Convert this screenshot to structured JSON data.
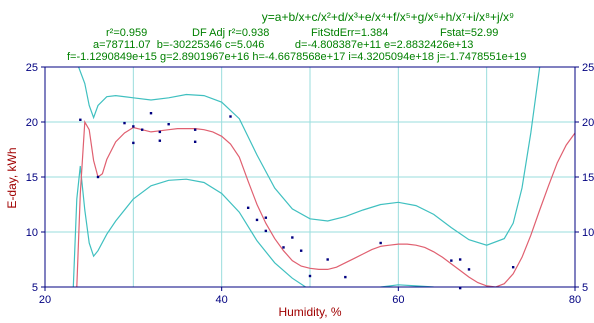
{
  "equation": "y=a+b/x+c/x²+d/x³+e/x⁴+f/x⁵+g/x⁶+h/x⁷+i/x⁸+j/x⁹",
  "stats": {
    "r2": "r²=0.959",
    "df_adj": "DF Adj r²=0.938",
    "fit_std_err": "FitStdErr=1.384",
    "fstat": "Fstat=52.99"
  },
  "coefficients": {
    "line1": "a=78711.07  b=-30225346 c=5.046          d=-4.808387e+11 e=2.8832426e+13",
    "line2": "f=-1.1290849e+15 g=2.8901967e+16 h=-4.6678568e+17 i=4.3205094e+18 j=-1.7478551e+19"
  },
  "colors": {
    "fit": "#e06070",
    "confidence": "#40c0c0",
    "prediction": "#40c0c0",
    "points": "#000080",
    "grid": "#99dddd",
    "axis": "#000080",
    "text": "#008000",
    "axis_label": "#a00000"
  },
  "chart_data": {
    "type": "scatter",
    "xlabel": "Humidity, %",
    "ylabel": "E-day, kWh",
    "xlim": [
      20,
      80
    ],
    "ylim": [
      5,
      25
    ],
    "xticks": [
      20,
      40,
      60,
      80
    ],
    "yticks": [
      5,
      10,
      15,
      20,
      25
    ],
    "grid": true,
    "points": [
      {
        "x": 24.0,
        "y": 20.2
      },
      {
        "x": 26.0,
        "y": 15.0
      },
      {
        "x": 29.0,
        "y": 19.9
      },
      {
        "x": 30.0,
        "y": 19.6
      },
      {
        "x": 30.0,
        "y": 18.1
      },
      {
        "x": 31.0,
        "y": 19.3
      },
      {
        "x": 32.0,
        "y": 20.8
      },
      {
        "x": 33.0,
        "y": 19.1
      },
      {
        "x": 33.0,
        "y": 18.3
      },
      {
        "x": 34.0,
        "y": 19.8
      },
      {
        "x": 37.0,
        "y": 19.3
      },
      {
        "x": 37.0,
        "y": 18.2
      },
      {
        "x": 41.0,
        "y": 20.5
      },
      {
        "x": 43.0,
        "y": 12.2
      },
      {
        "x": 44.0,
        "y": 11.1
      },
      {
        "x": 45.0,
        "y": 11.3
      },
      {
        "x": 45.0,
        "y": 10.1
      },
      {
        "x": 47.0,
        "y": 8.6
      },
      {
        "x": 48.0,
        "y": 9.5
      },
      {
        "x": 49.0,
        "y": 8.3
      },
      {
        "x": 50.0,
        "y": 6.0
      },
      {
        "x": 52.0,
        "y": 7.5
      },
      {
        "x": 54.0,
        "y": 5.9
      },
      {
        "x": 58.0,
        "y": 9.0
      },
      {
        "x": 66.0,
        "y": 7.4
      },
      {
        "x": 67.0,
        "y": 7.5
      },
      {
        "x": 68.0,
        "y": 6.6
      },
      {
        "x": 67.0,
        "y": 4.9
      },
      {
        "x": 73.0,
        "y": 6.8
      }
    ],
    "fit_curve": [
      [
        23.6,
        5.0
      ],
      [
        24.0,
        13.5
      ],
      [
        24.5,
        20.0
      ],
      [
        25.0,
        19.3
      ],
      [
        25.5,
        16.5
      ],
      [
        26.0,
        15.0
      ],
      [
        26.5,
        15.3
      ],
      [
        27.0,
        16.6
      ],
      [
        28.0,
        18.2
      ],
      [
        29.0,
        19.0
      ],
      [
        30.0,
        19.5
      ],
      [
        31.0,
        19.3
      ],
      [
        32.0,
        19.1
      ],
      [
        33.0,
        19.2
      ],
      [
        34.0,
        19.3
      ],
      [
        35.0,
        19.4
      ],
      [
        36.0,
        19.4
      ],
      [
        37.0,
        19.4
      ],
      [
        38.0,
        19.3
      ],
      [
        39.0,
        19.1
      ],
      [
        40.0,
        18.7
      ],
      [
        41.0,
        18.0
      ],
      [
        42.0,
        16.8
      ],
      [
        43.0,
        14.6
      ],
      [
        44.0,
        12.5
      ],
      [
        45.0,
        10.8
      ],
      [
        46.0,
        9.4
      ],
      [
        47.0,
        8.3
      ],
      [
        48.0,
        7.4
      ],
      [
        49.0,
        6.9
      ],
      [
        50.0,
        6.7
      ],
      [
        51.0,
        6.6
      ],
      [
        52.0,
        6.6
      ],
      [
        53.0,
        6.8
      ],
      [
        54.0,
        7.2
      ],
      [
        55.0,
        7.6
      ],
      [
        56.0,
        8.0
      ],
      [
        57.0,
        8.4
      ],
      [
        58.0,
        8.7
      ],
      [
        59.0,
        8.8
      ],
      [
        60.0,
        8.9
      ],
      [
        61.0,
        8.9
      ],
      [
        62.0,
        8.8
      ],
      [
        63.0,
        8.6
      ],
      [
        64.0,
        8.2
      ],
      [
        65.0,
        7.7
      ],
      [
        66.0,
        7.1
      ],
      [
        67.0,
        6.5
      ],
      [
        68.0,
        5.9
      ],
      [
        69.0,
        5.4
      ],
      [
        70.0,
        5.1
      ],
      [
        71.0,
        5.0
      ],
      [
        72.0,
        5.3
      ],
      [
        73.0,
        6.2
      ],
      [
        74.0,
        7.7
      ],
      [
        75.0,
        9.7
      ],
      [
        76.0,
        12.0
      ],
      [
        77.0,
        14.2
      ],
      [
        78.0,
        16.3
      ],
      [
        79.0,
        17.9
      ],
      [
        80.0,
        19.0
      ]
    ],
    "upper_band": [
      [
        23.8,
        25.0
      ],
      [
        24.5,
        23.5
      ],
      [
        25.0,
        21.5
      ],
      [
        25.5,
        20.4
      ],
      [
        26.0,
        21.5
      ],
      [
        27.0,
        22.3
      ],
      [
        28.0,
        22.4
      ],
      [
        30.0,
        22.2
      ],
      [
        32.0,
        22.0
      ],
      [
        34.0,
        22.2
      ],
      [
        36.0,
        22.5
      ],
      [
        38.0,
        22.4
      ],
      [
        40.0,
        21.8
      ],
      [
        42.0,
        20.3
      ],
      [
        44.0,
        17.0
      ],
      [
        46.0,
        14.0
      ],
      [
        48.0,
        12.1
      ],
      [
        50.0,
        11.2
      ],
      [
        52.0,
        11.0
      ],
      [
        54.0,
        11.4
      ],
      [
        56.0,
        12.0
      ],
      [
        58.0,
        12.5
      ],
      [
        60.0,
        12.7
      ],
      [
        62.0,
        12.4
      ],
      [
        64.0,
        11.6
      ],
      [
        66.0,
        10.4
      ],
      [
        68.0,
        9.3
      ],
      [
        70.0,
        8.8
      ],
      [
        72.0,
        9.4
      ],
      [
        73.0,
        10.8
      ],
      [
        74.0,
        14.0
      ],
      [
        75.0,
        19.0
      ],
      [
        76.0,
        25.0
      ]
    ],
    "lower_band": [
      [
        23.2,
        5.0
      ],
      [
        23.6,
        13.0
      ],
      [
        24.0,
        16.0
      ],
      [
        24.5,
        12.0
      ],
      [
        25.0,
        9.0
      ],
      [
        25.5,
        7.8
      ],
      [
        26.0,
        8.3
      ],
      [
        27.0,
        9.8
      ],
      [
        28.0,
        11.0
      ],
      [
        30.0,
        13.0
      ],
      [
        32.0,
        14.2
      ],
      [
        34.0,
        14.7
      ],
      [
        36.0,
        14.8
      ],
      [
        38.0,
        14.5
      ],
      [
        40.0,
        13.5
      ],
      [
        42.0,
        11.8
      ],
      [
        44.0,
        9.2
      ],
      [
        46.0,
        7.2
      ],
      [
        48.0,
        5.8
      ],
      [
        49.5,
        5.0
      ]
    ],
    "lower_band_2": [
      [
        58.0,
        5.0
      ],
      [
        60.0,
        5.2
      ],
      [
        62.0,
        5.1
      ],
      [
        64.0,
        5.0
      ]
    ]
  }
}
